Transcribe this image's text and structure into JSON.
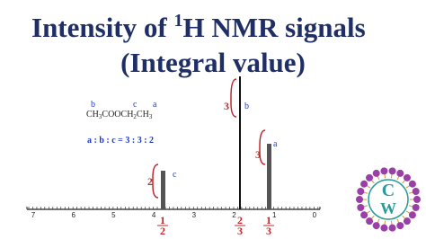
{
  "title": {
    "line1_pre": "Intensity of ",
    "sup": "1",
    "line1_post": "H NMR signals",
    "line2": "(Integral value)"
  },
  "molecule": {
    "parts": [
      "CH",
      "3",
      "COOCH",
      "2",
      "CH",
      "3"
    ],
    "letters": [
      "b",
      "c",
      "a"
    ]
  },
  "ratio": "a : b : c = 3 : 3 : 2",
  "axis_labels": [
    "7",
    "6",
    "5",
    "4",
    "3",
    "2",
    "1",
    "0"
  ],
  "peaks": [
    {
      "letter": "c",
      "integral": "2",
      "top": "1",
      "bottom": "2"
    },
    {
      "letter": "b",
      "integral": "3",
      "top": "2",
      "bottom": "3"
    },
    {
      "letter": "a",
      "integral": "3",
      "top": "1",
      "bottom": "3"
    }
  ],
  "logo": [
    "C",
    "W"
  ]
}
